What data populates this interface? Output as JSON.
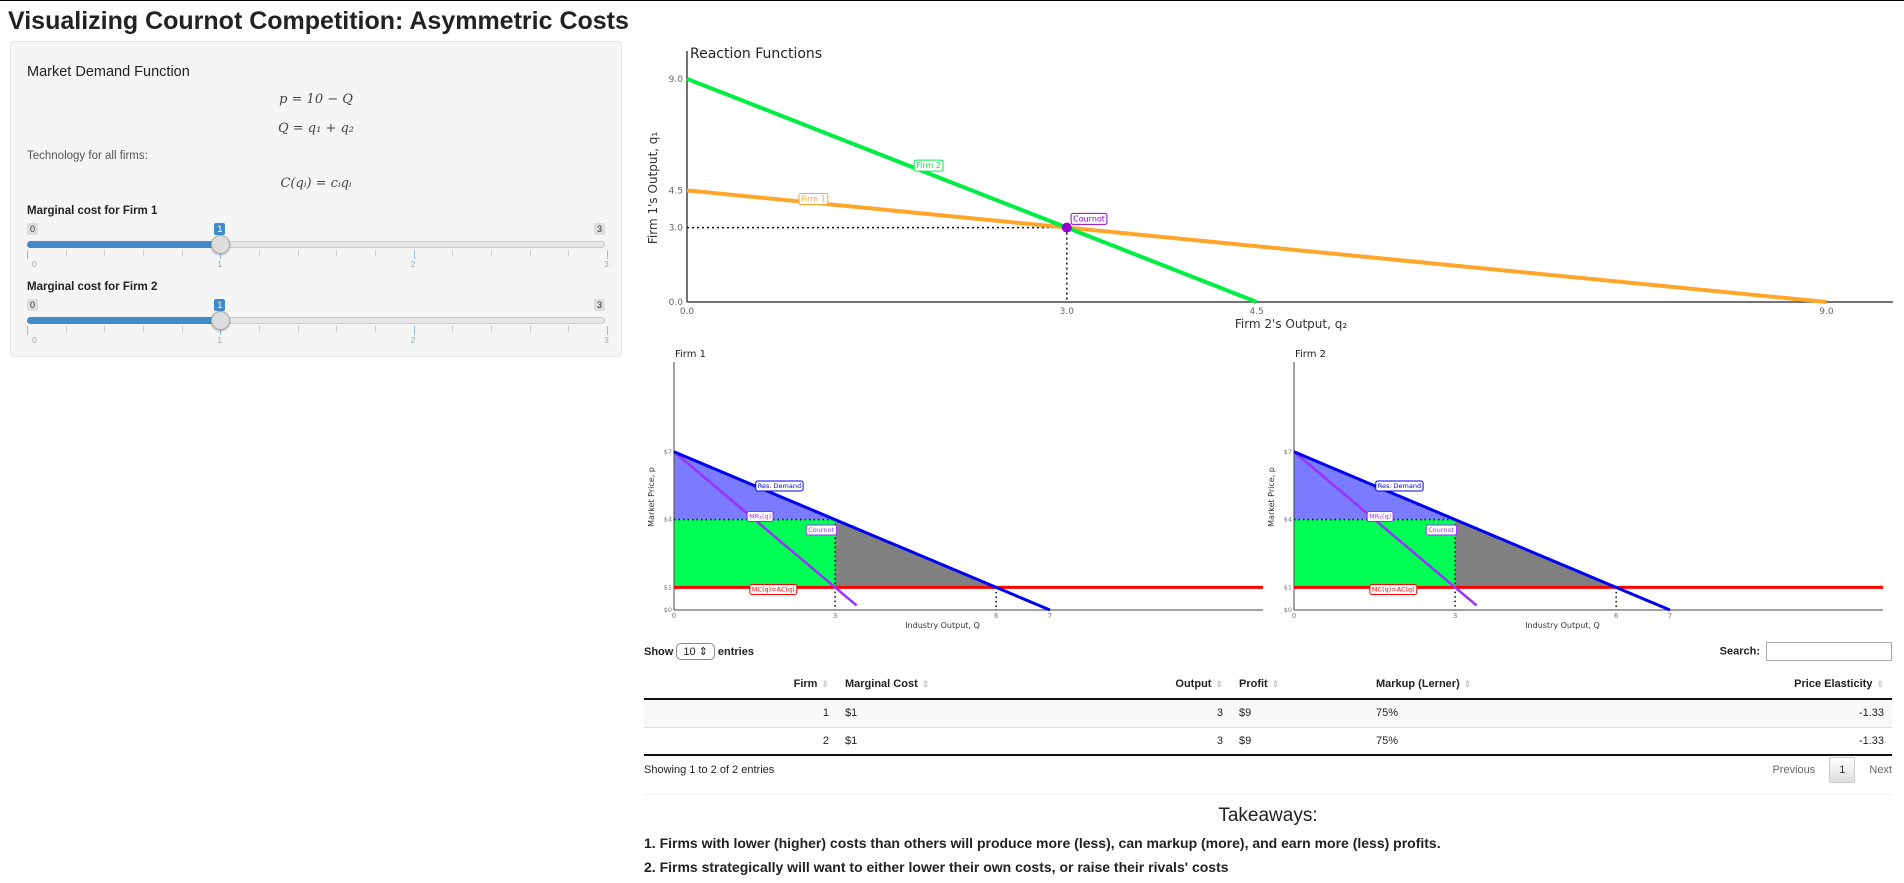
{
  "page_title": "Visualizing Cournot Competition: Asymmetric Costs",
  "sidebar": {
    "heading": "Market Demand Function",
    "eq1": "p = 10 − Q",
    "eq2": "Q = q₁ + q₂",
    "tech_label": "Technology for all firms:",
    "eq3": "C(qᵢ) = cᵢqᵢ",
    "sliders": [
      {
        "label": "Marginal cost for Firm 1",
        "min": "0",
        "max": "3",
        "value": "1",
        "ticks": [
          "0",
          "1",
          "2",
          "3"
        ],
        "fraction": 0.3333
      },
      {
        "label": "Marginal cost for Firm 2",
        "min": "0",
        "max": "3",
        "value": "1",
        "ticks": [
          "0",
          "1",
          "2",
          "3"
        ],
        "fraction": 0.3333
      }
    ]
  },
  "chart_data": [
    {
      "type": "line",
      "title": "Reaction Functions",
      "xlabel": "Firm 2's Output, q₂",
      "ylabel": "Firm 1's Output, q₁",
      "xlim": [
        0,
        9.45
      ],
      "ylim": [
        0,
        9.45
      ],
      "xticks": [
        "0.0",
        "3.0",
        "4.5",
        "9.0"
      ],
      "yticks": [
        "0.0",
        "3.0",
        "4.5",
        "9.0"
      ],
      "series": [
        {
          "name": "Firm 1",
          "color": "#ffa52a",
          "x": [
            0,
            9
          ],
          "y": [
            4.5,
            0
          ]
        },
        {
          "name": "Firm 2",
          "color": "#00ee44",
          "x": [
            0,
            4.5
          ],
          "y": [
            9,
            0
          ]
        }
      ],
      "point": {
        "name": "Cournot",
        "x": 3,
        "y": 3,
        "color": "#9400d3"
      }
    },
    {
      "type": "line",
      "title": "Firm 1",
      "xlabel": "Industry Output, Q",
      "ylabel": "Market Price, p",
      "xlim": [
        0,
        10.9
      ],
      "ylim": [
        0,
        10.9
      ],
      "xticks": [
        "0",
        "3",
        "6",
        "7"
      ],
      "yticks": [
        "$0",
        "$1",
        "$4",
        "$7"
      ],
      "demand": {
        "name": "Res. Demand",
        "intercept": 7,
        "slope": -1,
        "end": 7
      },
      "mr": {
        "name": "MR₁(q)",
        "intercept": 7,
        "slope": -2,
        "end": 3.4
      },
      "mc": {
        "name": "MC(q)=AC(q)",
        "value": 1
      },
      "cournot": {
        "name": "Cournot",
        "q": 3,
        "p": 4
      },
      "competitive_q": 6
    },
    {
      "type": "line",
      "title": "Firm 2",
      "xlabel": "Industry Output, Q",
      "ylabel": "Market Price, p",
      "xlim": [
        0,
        10.9
      ],
      "ylim": [
        0,
        10.9
      ],
      "xticks": [
        "0",
        "3",
        "6",
        "7"
      ],
      "yticks": [
        "$0",
        "$1",
        "$4",
        "$7"
      ],
      "demand": {
        "name": "Res. Demand",
        "intercept": 7,
        "slope": -1,
        "end": 7
      },
      "mr": {
        "name": "MR₂(q)",
        "intercept": 7,
        "slope": -2,
        "end": 3.4
      },
      "mc": {
        "name": "MC(q)=AC(q)",
        "value": 1
      },
      "cournot": {
        "name": "Cournot",
        "q": 3,
        "p": 4
      },
      "competitive_q": 6
    }
  ],
  "table": {
    "show_label": "Show",
    "entries_value": "10",
    "entries_label": "entries",
    "search_label": "Search:",
    "search_value": "",
    "headers": [
      "",
      "Firm",
      "Marginal Cost",
      "Output",
      "Profit",
      "Markup (Lerner)",
      "Price Elasticity"
    ],
    "rows": [
      [
        "1",
        "1",
        "$1",
        "3",
        "$9",
        "75%",
        "-1.33"
      ],
      [
        "2",
        "2",
        "$1",
        "3",
        "$9",
        "75%",
        "-1.33"
      ]
    ],
    "info": "Showing 1 to 2 of 2 entries",
    "prev": "Previous",
    "page": "1",
    "next": "Next"
  },
  "takeaways": {
    "heading": "Takeaways:",
    "items": [
      "1. Firms with lower (higher) costs than others will produce more (less), can markup (more), and earn more (less) profits.",
      "2. Firms strategically will want to either lower their own costs, or raise their rivals' costs"
    ]
  },
  "colors": {
    "demand": "#0000ee",
    "mr": "#9b30ff",
    "mc": "#ff0000",
    "profit": "#00ff55",
    "consumer": "#7b7bff",
    "dwl": "#808080"
  }
}
